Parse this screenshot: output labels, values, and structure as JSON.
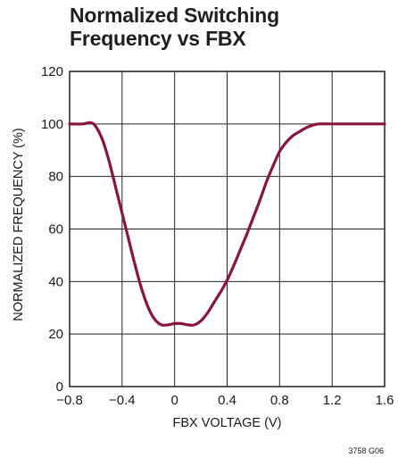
{
  "chart_data": {
    "type": "line",
    "title": [
      "Normalized Switching",
      "Frequency vs FBX"
    ],
    "xlabel": "FBX VOLTAGE (V)",
    "ylabel": "NORMALIZED FREQUENCY (%)",
    "xlim": [
      -0.8,
      1.6
    ],
    "ylim": [
      0,
      120
    ],
    "x_ticks": [
      -0.8,
      -0.4,
      0,
      0.4,
      0.8,
      1.2,
      1.6
    ],
    "x_tick_labels": [
      "−0.8",
      "−0.4",
      "0",
      "0.4",
      "0.8",
      "1.2",
      "1.6"
    ],
    "y_ticks": [
      0,
      20,
      40,
      60,
      80,
      100,
      120
    ],
    "y_tick_labels": [
      "0",
      "20",
      "40",
      "60",
      "80",
      "100",
      "120"
    ],
    "grid": true,
    "series": [
      {
        "color": "#8b1538",
        "x": [
          -0.8,
          -0.7,
          -0.64,
          -0.6,
          -0.55,
          -0.5,
          -0.45,
          -0.4,
          -0.35,
          -0.3,
          -0.25,
          -0.2,
          -0.15,
          -0.1,
          -0.05,
          0,
          0.05,
          0.1,
          0.15,
          0.2,
          0.25,
          0.3,
          0.35,
          0.4,
          0.45,
          0.5,
          0.55,
          0.6,
          0.65,
          0.7,
          0.75,
          0.8,
          0.85,
          0.9,
          0.95,
          1.0,
          1.05,
          1.1,
          1.2,
          1.4,
          1.6
        ],
        "y": [
          100,
          100,
          100.5,
          99,
          94,
          86,
          76,
          66,
          56,
          46,
          37,
          30,
          25.5,
          23.5,
          23.5,
          24,
          24,
          23.5,
          23.5,
          25,
          28,
          32,
          36,
          40.5,
          46,
          52,
          58,
          64.5,
          71,
          78,
          84,
          89.5,
          93,
          95.5,
          97,
          98.5,
          99.5,
          100,
          100,
          100,
          100
        ]
      }
    ]
  },
  "figure_code": "3758 G06"
}
